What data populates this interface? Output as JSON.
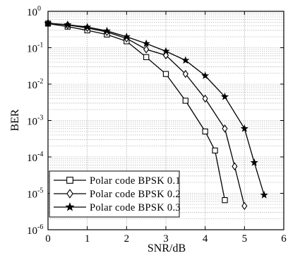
{
  "chart_data": {
    "type": "line",
    "xlabel": "SNR/dB",
    "ylabel": "BER",
    "xlim": [
      0,
      6
    ],
    "ylim": [
      1e-06,
      1
    ],
    "y_scale": "log",
    "grid": true,
    "legend_position": "bottom-left",
    "x_ticks": [
      {
        "value": 0,
        "label": "0"
      },
      {
        "value": 1,
        "label": "1"
      },
      {
        "value": 2,
        "label": "2"
      },
      {
        "value": 3,
        "label": "3"
      },
      {
        "value": 4,
        "label": "4"
      },
      {
        "value": 5,
        "label": "5"
      },
      {
        "value": 6,
        "label": "6"
      }
    ],
    "y_ticks": [
      {
        "value": 1,
        "base": "10",
        "exp": "0"
      },
      {
        "value": 0.1,
        "base": "10",
        "exp": "-1"
      },
      {
        "value": 0.01,
        "base": "10",
        "exp": "-2"
      },
      {
        "value": 0.001,
        "base": "10",
        "exp": "-3"
      },
      {
        "value": 0.0001,
        "base": "10",
        "exp": "-4"
      },
      {
        "value": 1e-05,
        "base": "10",
        "exp": "-5"
      },
      {
        "value": 1e-06,
        "base": "10",
        "exp": "-6"
      }
    ],
    "series": [
      {
        "name": "Polar code BPSK 0.1",
        "marker": "square",
        "x": [
          0,
          0.5,
          1,
          1.5,
          2,
          2.5,
          3,
          3.5,
          4,
          4.25,
          4.5
        ],
        "y": [
          0.46,
          0.38,
          0.3,
          0.23,
          0.15,
          0.055,
          0.019,
          0.0035,
          0.0005,
          0.00015,
          6.5e-06
        ]
      },
      {
        "name": "Polar code BPSK 0.2",
        "marker": "diamond",
        "x": [
          0,
          0.5,
          1,
          1.5,
          2,
          2.5,
          3,
          3.5,
          4,
          4.5,
          4.75,
          5
        ],
        "y": [
          0.47,
          0.42,
          0.35,
          0.27,
          0.18,
          0.09,
          0.062,
          0.019,
          0.004,
          0.0006,
          5.5e-05,
          4.5e-06
        ]
      },
      {
        "name": "Polar code BPSK 0.3",
        "marker": "star",
        "x": [
          0,
          0.5,
          1,
          1.5,
          2,
          2.5,
          3,
          3.5,
          4,
          4.5,
          5,
          5.25,
          5.5
        ],
        "y": [
          0.47,
          0.43,
          0.37,
          0.29,
          0.2,
          0.13,
          0.08,
          0.045,
          0.017,
          0.0045,
          0.0006,
          7e-05,
          9e-06
        ]
      }
    ]
  }
}
